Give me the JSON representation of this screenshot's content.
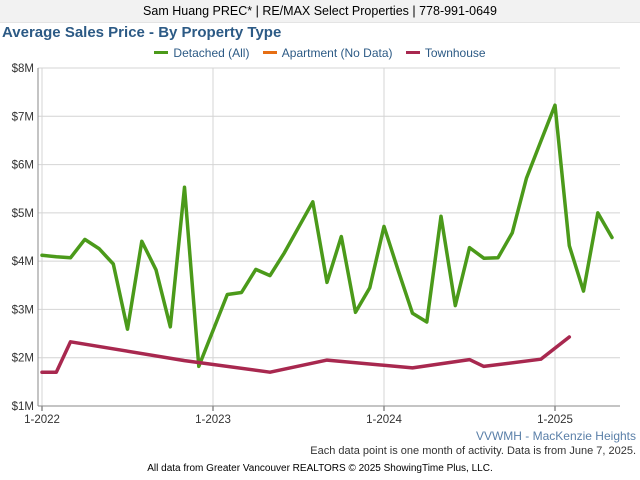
{
  "header": {
    "agent_line": "Sam Huang PREC* | RE/MAX Select Properties | 778-991-0649"
  },
  "notes": {
    "region": "VVWMH - MacKenzie Heights",
    "activity": "Each data point is one month of activity. Data is from June 7, 2025.",
    "source": "All data from Greater Vancouver REALTORS © 2025 ShowingTime Plus, LLC."
  },
  "chart_data": {
    "type": "line",
    "title": "Average Sales Price - By Property Type",
    "xlabel": "",
    "ylabel": "",
    "ylim": [
      1000000,
      8000000
    ],
    "y_ticks": [
      1000000,
      2000000,
      3000000,
      4000000,
      5000000,
      6000000,
      7000000,
      8000000
    ],
    "y_tick_labels": [
      "$1M",
      "$2M",
      "$3M",
      "$4M",
      "$5M",
      "$6M",
      "$7M",
      "$8M"
    ],
    "x_range": [
      "2022-01",
      "2025-05"
    ],
    "x_ticks": [
      "2022-01",
      "2023-01",
      "2024-01",
      "2025-01"
    ],
    "x_tick_labels": [
      "1-2022",
      "1-2023",
      "1-2024",
      "1-2025"
    ],
    "grid": true,
    "legend_position": "top",
    "series": [
      {
        "name": "Detached (All)",
        "color": "#4b9a1a",
        "points": [
          [
            "2022-01",
            4120000
          ],
          [
            "2022-02",
            4090000
          ],
          [
            "2022-03",
            4070000
          ],
          [
            "2022-04",
            4450000
          ],
          [
            "2022-05",
            4260000
          ],
          [
            "2022-06",
            3940000
          ],
          [
            "2022-07",
            2590000
          ],
          [
            "2022-08",
            4410000
          ],
          [
            "2022-09",
            3820000
          ],
          [
            "2022-10",
            2640000
          ],
          [
            "2022-11",
            5530000
          ],
          [
            "2022-12",
            1820000
          ],
          [
            "2023-02",
            3310000
          ],
          [
            "2023-03",
            3350000
          ],
          [
            "2023-04",
            3830000
          ],
          [
            "2023-05",
            3700000
          ],
          [
            "2023-06",
            4170000
          ],
          [
            "2023-08",
            5230000
          ],
          [
            "2023-09",
            3560000
          ],
          [
            "2023-10",
            4510000
          ],
          [
            "2023-11",
            2940000
          ],
          [
            "2023-12",
            3450000
          ],
          [
            "2024-01",
            4720000
          ],
          [
            "2024-02",
            3800000
          ],
          [
            "2024-03",
            2920000
          ],
          [
            "2024-04",
            2740000
          ],
          [
            "2024-05",
            4930000
          ],
          [
            "2024-06",
            3080000
          ],
          [
            "2024-07",
            4280000
          ],
          [
            "2024-08",
            4060000
          ],
          [
            "2024-09",
            4070000
          ],
          [
            "2024-10",
            4590000
          ],
          [
            "2024-11",
            5720000
          ],
          [
            "2024-12",
            6480000
          ],
          [
            "2025-01",
            7230000
          ],
          [
            "2025-02",
            4320000
          ],
          [
            "2025-03",
            3380000
          ],
          [
            "2025-04",
            5000000
          ],
          [
            "2025-05",
            4490000
          ]
        ]
      },
      {
        "name": "Apartment (No Data)",
        "color": "#e66e14",
        "points": []
      },
      {
        "name": "Townhouse",
        "color": "#a8284f",
        "points": [
          [
            "2022-01",
            1700000
          ],
          [
            "2022-02",
            1700000
          ],
          [
            "2022-03",
            2330000
          ],
          [
            "2022-11",
            1940000
          ],
          [
            "2023-05",
            1700000
          ],
          [
            "2023-09",
            1950000
          ],
          [
            "2024-03",
            1790000
          ],
          [
            "2024-07",
            1960000
          ],
          [
            "2024-08",
            1820000
          ],
          [
            "2024-12",
            1970000
          ],
          [
            "2025-02",
            2430000
          ]
        ]
      }
    ]
  }
}
